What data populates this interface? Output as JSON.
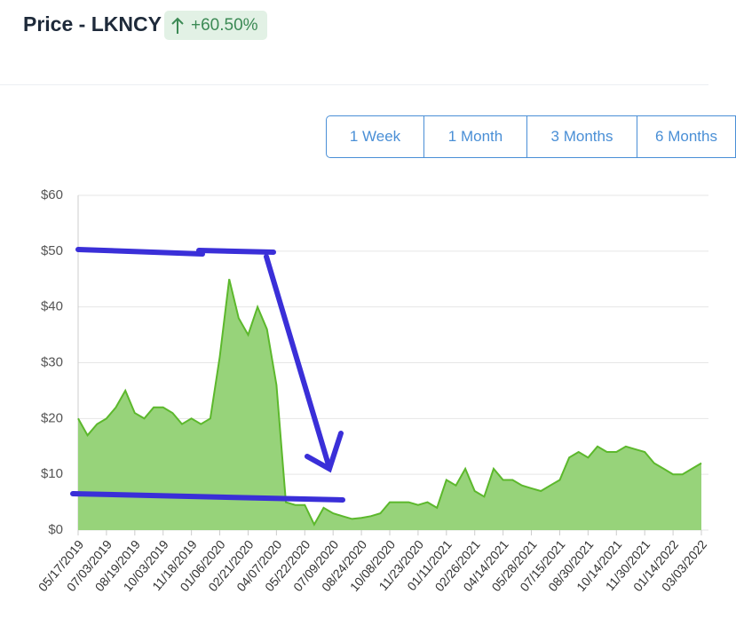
{
  "header": {
    "title": "Price - LKNCY",
    "change": "+60.50%"
  },
  "buttons": [
    "1 Week",
    "1 Month",
    "3 Months",
    "6 Months"
  ],
  "chart_data": {
    "type": "area",
    "categories": [
      "05/17/2019",
      null,
      null,
      "07/03/2019",
      null,
      null,
      "08/19/2019",
      null,
      null,
      "10/03/2019",
      null,
      null,
      "11/18/2019",
      null,
      null,
      "01/06/2020",
      null,
      null,
      "02/21/2020",
      null,
      null,
      "04/07/2020",
      null,
      null,
      "05/22/2020",
      null,
      null,
      "07/09/2020",
      null,
      null,
      "08/24/2020",
      null,
      null,
      "10/08/2020",
      null,
      null,
      "11/23/2020",
      null,
      null,
      "01/11/2021",
      null,
      null,
      "02/26/2021",
      null,
      null,
      "04/14/2021",
      null,
      null,
      "05/28/2021",
      null,
      null,
      "07/15/2021",
      null,
      null,
      "08/30/2021",
      null,
      null,
      "10/14/2021",
      null,
      null,
      "11/30/2021",
      null,
      null,
      "01/14/2022",
      null,
      null,
      "03/03/2022"
    ],
    "series": [
      {
        "name": "Price",
        "color": "#5cb82c",
        "values": [
          20,
          17,
          19,
          20,
          22,
          25,
          21,
          20,
          22,
          22,
          21,
          19,
          20,
          19,
          20,
          31,
          45,
          38,
          35,
          40,
          36,
          26,
          5,
          4.5,
          4.5,
          1,
          4,
          3,
          2.5,
          2,
          2.2,
          2.5,
          3,
          5,
          5,
          5,
          4.5,
          5,
          4,
          9,
          8,
          11,
          7,
          6,
          11,
          9,
          9,
          8,
          7.5,
          7,
          8,
          9,
          13,
          14,
          13,
          15,
          14,
          14,
          15,
          14.5,
          14,
          12,
          11,
          10,
          10,
          11,
          12
        ]
      }
    ],
    "ylim": [
      0,
      60
    ],
    "yticks": [
      {
        "value": 0,
        "label": "$0"
      },
      {
        "value": 10,
        "label": "$10"
      },
      {
        "value": 20,
        "label": "$20"
      },
      {
        "value": 30,
        "label": "$30"
      },
      {
        "value": 40,
        "label": "$40"
      },
      {
        "value": 50,
        "label": "$50"
      },
      {
        "value": 60,
        "label": "$60"
      }
    ],
    "grid": true
  }
}
